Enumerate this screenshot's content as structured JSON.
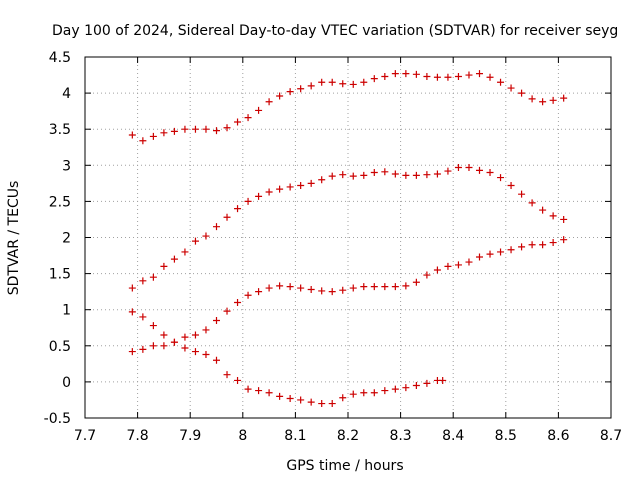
{
  "chart_data": {
    "type": "scatter",
    "title": "Day 100 of 2024, Sidereal Day-to-day VTEC variation (SDTVAR) for receiver seyg",
    "xlabel": "GPS time / hours",
    "ylabel": "SDTVAR / TECUs",
    "xlim": [
      7.7,
      8.7
    ],
    "ylim": [
      -0.5,
      4.5
    ],
    "xticks": [
      "7.7",
      "7.8",
      "7.9",
      "8",
      "8.1",
      "8.2",
      "8.3",
      "8.4",
      "8.5",
      "8.6",
      "8.7"
    ],
    "yticks": [
      "-0.5",
      "0",
      "0.5",
      "1",
      "1.5",
      "2",
      "2.5",
      "3",
      "3.5",
      "4",
      "4.5"
    ],
    "grid": true,
    "marker": "+",
    "color": "#cc0000",
    "series": [
      {
        "name": "series-1",
        "x": [
          7.79,
          7.81,
          7.83,
          7.85,
          7.87,
          7.89,
          7.91,
          7.93,
          7.95,
          7.97,
          7.99,
          8.01,
          8.03,
          8.05,
          8.07,
          8.09,
          8.11,
          8.13,
          8.15,
          8.17,
          8.19,
          8.21,
          8.23,
          8.25,
          8.27,
          8.29,
          8.31,
          8.33,
          8.35,
          8.37,
          8.39,
          8.41,
          8.43,
          8.45,
          8.47,
          8.49,
          8.51,
          8.53,
          8.55,
          8.57,
          8.59,
          8.61
        ],
        "y": [
          3.42,
          3.34,
          3.4,
          3.45,
          3.47,
          3.5,
          3.5,
          3.5,
          3.48,
          3.52,
          3.6,
          3.66,
          3.76,
          3.88,
          3.96,
          4.02,
          4.06,
          4.1,
          4.15,
          4.15,
          4.13,
          4.12,
          4.15,
          4.2,
          4.23,
          4.27,
          4.27,
          4.26,
          4.23,
          4.22,
          4.22,
          4.23,
          4.25,
          4.27,
          4.22,
          4.15,
          4.07,
          4.0,
          3.92,
          3.88,
          3.9,
          3.93
        ]
      },
      {
        "name": "series-2",
        "x": [
          7.79,
          7.81,
          7.83,
          7.85,
          7.87,
          7.89,
          7.91,
          7.93,
          7.95,
          7.97,
          7.99,
          8.01,
          8.03,
          8.05,
          8.07,
          8.09,
          8.11,
          8.13,
          8.15,
          8.17,
          8.19,
          8.21,
          8.23,
          8.25,
          8.27,
          8.29,
          8.31,
          8.33,
          8.35,
          8.37,
          8.39,
          8.41,
          8.43,
          8.45,
          8.47,
          8.49,
          8.51,
          8.53,
          8.55,
          8.57,
          8.59,
          8.61
        ],
        "y": [
          1.3,
          1.4,
          1.45,
          1.6,
          1.7,
          1.8,
          1.95,
          2.02,
          2.15,
          2.28,
          2.4,
          2.5,
          2.57,
          2.63,
          2.67,
          2.7,
          2.72,
          2.75,
          2.8,
          2.85,
          2.87,
          2.85,
          2.86,
          2.9,
          2.91,
          2.88,
          2.86,
          2.86,
          2.87,
          2.88,
          2.92,
          2.97,
          2.97,
          2.93,
          2.9,
          2.83,
          2.72,
          2.6,
          2.48,
          2.38,
          2.3,
          2.25
        ]
      },
      {
        "name": "series-3",
        "x": [
          7.79,
          7.81,
          7.83,
          7.85,
          7.87,
          7.89,
          7.91,
          7.93,
          7.95,
          7.97,
          7.99,
          8.01,
          8.03,
          8.05,
          8.07,
          8.09,
          8.11,
          8.13,
          8.15,
          8.17,
          8.19,
          8.21,
          8.23,
          8.25,
          8.27,
          8.29,
          8.31,
          8.33,
          8.35,
          8.37,
          8.39,
          8.41,
          8.43,
          8.45,
          8.47,
          8.49,
          8.51,
          8.53,
          8.55,
          8.57,
          8.59,
          8.61
        ],
        "y": [
          0.42,
          0.45,
          0.5,
          0.5,
          0.55,
          0.62,
          0.65,
          0.72,
          0.85,
          0.98,
          1.1,
          1.2,
          1.25,
          1.3,
          1.33,
          1.32,
          1.3,
          1.28,
          1.26,
          1.25,
          1.27,
          1.3,
          1.32,
          1.32,
          1.32,
          1.32,
          1.33,
          1.38,
          1.48,
          1.55,
          1.6,
          1.62,
          1.66,
          1.73,
          1.77,
          1.8,
          1.83,
          1.87,
          1.9,
          1.9,
          1.93,
          1.97
        ]
      },
      {
        "name": "series-4",
        "x": [
          7.79,
          7.81,
          7.83,
          7.85,
          7.87,
          7.89,
          7.91,
          7.93,
          7.95,
          7.97,
          7.99,
          8.01,
          8.03,
          8.05,
          8.07,
          8.09,
          8.11,
          8.13,
          8.15,
          8.17,
          8.19,
          8.21,
          8.23,
          8.25,
          8.27,
          8.29,
          8.31,
          8.33,
          8.35,
          8.37,
          8.38
        ],
        "y": [
          0.97,
          0.9,
          0.78,
          0.65,
          0.55,
          0.47,
          0.42,
          0.38,
          0.3,
          0.1,
          0.02,
          -0.1,
          -0.12,
          -0.15,
          -0.2,
          -0.23,
          -0.25,
          -0.28,
          -0.3,
          -0.3,
          -0.22,
          -0.17,
          -0.15,
          -0.15,
          -0.12,
          -0.1,
          -0.08,
          -0.05,
          -0.02,
          0.02,
          0.02
        ]
      }
    ]
  }
}
